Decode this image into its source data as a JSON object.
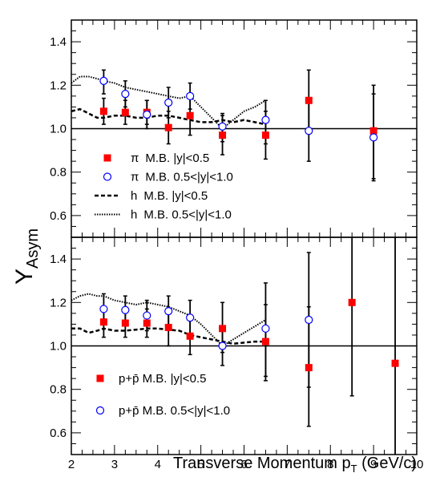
{
  "chart_data": [
    {
      "type": "scatter",
      "panel": "top",
      "ylabel": "Y",
      "ylabel_sub": "Asym",
      "xlim": [
        2,
        10
      ],
      "ylim": [
        0.5,
        1.5
      ],
      "yticks": [
        "0.6",
        "0.8",
        "1.0",
        "1.2",
        "1.4"
      ],
      "reference_line": 1.0,
      "legend": [
        {
          "symbol": "π",
          "text": "M.B. |y|<0.5",
          "marker": "filled-square",
          "color": "#ff0000"
        },
        {
          "symbol": "π",
          "text": "M.B. 0.5<|y|<1.0",
          "marker": "open-circle",
          "color": "#0000ff"
        },
        {
          "symbol": "h",
          "text": "M.B. |y|<0.5",
          "marker": "dashed-line",
          "color": "#000000"
        },
        {
          "symbol": "h",
          "text": "M.B. 0.5<|y|<1.0",
          "marker": "dotted-line",
          "color": "#000000"
        }
      ],
      "series": [
        {
          "name": "π M.B. |y|<0.5",
          "marker": "filled-square",
          "color": "#ff0000",
          "points": [
            {
              "x": 2.75,
              "y": 1.08,
              "lo": 1.02,
              "hi": 1.14
            },
            {
              "x": 3.25,
              "y": 1.075,
              "lo": 1.02,
              "hi": 1.13
            },
            {
              "x": 3.75,
              "y": 1.075,
              "lo": 1.02,
              "hi": 1.13
            },
            {
              "x": 4.25,
              "y": 1.005,
              "lo": 0.93,
              "hi": 1.08
            },
            {
              "x": 4.75,
              "y": 1.06,
              "lo": 0.97,
              "hi": 1.15
            },
            {
              "x": 5.5,
              "y": 0.97,
              "lo": 0.88,
              "hi": 1.06
            },
            {
              "x": 6.5,
              "y": 0.97,
              "lo": 0.86,
              "hi": 1.08
            },
            {
              "x": 7.5,
              "y": 1.13,
              "lo": 0.99,
              "hi": 1.27
            },
            {
              "x": 9.0,
              "y": 0.99,
              "lo": 0.77,
              "hi": 1.2
            }
          ]
        },
        {
          "name": "π M.B. 0.5<|y|<1.0",
          "marker": "open-circle",
          "color": "#0000ff",
          "points": [
            {
              "x": 2.75,
              "y": 1.22,
              "lo": 1.16,
              "hi": 1.27
            },
            {
              "x": 3.25,
              "y": 1.16,
              "lo": 1.1,
              "hi": 1.22
            },
            {
              "x": 3.75,
              "y": 1.065,
              "lo": 1.0,
              "hi": 1.13
            },
            {
              "x": 4.25,
              "y": 1.12,
              "lo": 1.05,
              "hi": 1.19
            },
            {
              "x": 4.75,
              "y": 1.15,
              "lo": 1.09,
              "hi": 1.21
            },
            {
              "x": 5.5,
              "y": 1.01,
              "lo": 0.94,
              "hi": 1.07
            },
            {
              "x": 6.5,
              "y": 1.04,
              "lo": 0.93,
              "hi": 1.13
            },
            {
              "x": 7.5,
              "y": 0.99,
              "lo": 0.85,
              "hi": 1.13
            },
            {
              "x": 9.0,
              "y": 0.96,
              "lo": 0.76,
              "hi": 1.16
            }
          ]
        },
        {
          "name": "h M.B. |y|<0.5",
          "line": "dashed",
          "color": "#000000",
          "x": [
            2.0,
            2.2,
            2.4,
            2.6,
            2.75,
            3.0,
            3.25,
            3.5,
            3.75,
            4.0,
            4.25,
            4.5,
            4.75,
            5.0,
            5.25,
            5.5,
            5.75,
            6.0,
            6.25,
            6.5
          ],
          "y": [
            1.08,
            1.09,
            1.07,
            1.05,
            1.05,
            1.06,
            1.06,
            1.05,
            1.05,
            1.06,
            1.06,
            1.05,
            1.04,
            1.03,
            1.03,
            1.04,
            1.03,
            1.04,
            1.03,
            1.02
          ]
        },
        {
          "name": "h M.B. 0.5<|y|<1.0",
          "line": "dotted",
          "color": "#000000",
          "x": [
            2.0,
            2.2,
            2.4,
            2.6,
            2.75,
            3.0,
            3.25,
            3.5,
            3.75,
            4.0,
            4.25,
            4.5,
            4.75,
            5.0,
            5.25,
            5.5,
            5.75,
            6.0,
            6.25,
            6.5
          ],
          "y": [
            1.21,
            1.24,
            1.24,
            1.23,
            1.22,
            1.21,
            1.19,
            1.18,
            1.17,
            1.16,
            1.15,
            1.14,
            1.15,
            1.1,
            1.05,
            1.0,
            1.04,
            1.08,
            1.1,
            1.13
          ]
        }
      ]
    },
    {
      "type": "scatter",
      "panel": "bottom",
      "xlabel": "Transverse Momentum p",
      "xlabel_sub": "T",
      "xlabel_unit": " (GeV/c)",
      "xlim": [
        2,
        10
      ],
      "ylim": [
        0.5,
        1.5
      ],
      "xticks": [
        "2",
        "3",
        "4",
        "5",
        "6",
        "7",
        "8",
        "9",
        "10"
      ],
      "yticks": [
        "0.6",
        "0.8",
        "1.0",
        "1.2",
        "1.4"
      ],
      "reference_line": 1.0,
      "legend": [
        {
          "text": "p+p̄  M.B. |y|<0.5",
          "marker": "filled-square",
          "color": "#ff0000"
        },
        {
          "text": "p+p̄  M.B. 0.5<|y|<1.0",
          "marker": "open-circle",
          "color": "#0000ff"
        }
      ],
      "series": [
        {
          "name": "p+p̄ M.B. |y|<0.5",
          "marker": "filled-square",
          "color": "#ff0000",
          "points": [
            {
              "x": 2.75,
              "y": 1.11,
              "lo": 1.04,
              "hi": 1.18
            },
            {
              "x": 3.25,
              "y": 1.105,
              "lo": 1.04,
              "hi": 1.17
            },
            {
              "x": 3.75,
              "y": 1.105,
              "lo": 1.04,
              "hi": 1.17
            },
            {
              "x": 4.25,
              "y": 1.085,
              "lo": 1.0,
              "hi": 1.17
            },
            {
              "x": 4.75,
              "y": 1.045,
              "lo": 0.96,
              "hi": 1.13
            },
            {
              "x": 5.5,
              "y": 1.08,
              "lo": 0.97,
              "hi": 1.2
            },
            {
              "x": 6.5,
              "y": 1.02,
              "lo": 0.84,
              "hi": 1.19
            },
            {
              "x": 7.5,
              "y": 0.9,
              "lo": 0.63,
              "hi": 1.18
            },
            {
              "x": 8.5,
              "y": 1.2,
              "lo": 0.77,
              "hi": 1.63
            },
            {
              "x": 9.5,
              "y": 0.92,
              "lo": 0.35,
              "hi": 1.5
            }
          ]
        },
        {
          "name": "p+p̄ M.B. 0.5<|y|<1.0",
          "marker": "open-circle",
          "color": "#0000ff",
          "points": [
            {
              "x": 2.75,
              "y": 1.17,
              "lo": 1.11,
              "hi": 1.24
            },
            {
              "x": 3.25,
              "y": 1.165,
              "lo": 1.1,
              "hi": 1.23
            },
            {
              "x": 3.75,
              "y": 1.14,
              "lo": 1.07,
              "hi": 1.21
            },
            {
              "x": 4.25,
              "y": 1.16,
              "lo": 1.09,
              "hi": 1.23
            },
            {
              "x": 4.75,
              "y": 1.13,
              "lo": 1.05,
              "hi": 1.21
            },
            {
              "x": 5.5,
              "y": 1.0,
              "lo": 0.91,
              "hi": 1.09
            },
            {
              "x": 6.5,
              "y": 1.08,
              "lo": 0.86,
              "hi": 1.29
            },
            {
              "x": 7.5,
              "y": 1.12,
              "lo": 0.81,
              "hi": 1.43
            }
          ]
        },
        {
          "name": "h M.B. |y|<0.5",
          "line": "dashed",
          "color": "#000000",
          "x": [
            2.0,
            2.2,
            2.4,
            2.6,
            2.75,
            3.0,
            3.25,
            3.5,
            3.75,
            4.0,
            4.25,
            4.5,
            4.75,
            5.0,
            5.25,
            5.5,
            5.75,
            6.0,
            6.25,
            6.5
          ],
          "y": [
            1.08,
            1.08,
            1.06,
            1.07,
            1.08,
            1.07,
            1.07,
            1.075,
            1.08,
            1.08,
            1.075,
            1.07,
            1.05,
            1.04,
            1.03,
            1.02,
            1.01,
            1.015,
            1.02,
            1.02
          ]
        },
        {
          "name": "h M.B. 0.5<|y|<1.0",
          "line": "dotted",
          "color": "#000000",
          "x": [
            2.0,
            2.2,
            2.4,
            2.6,
            2.75,
            3.0,
            3.25,
            3.5,
            3.75,
            4.0,
            4.25,
            4.5,
            4.75,
            5.0,
            5.25,
            5.5,
            5.75,
            6.0,
            6.25,
            6.5
          ],
          "y": [
            1.21,
            1.23,
            1.24,
            1.23,
            1.23,
            1.21,
            1.2,
            1.19,
            1.2,
            1.19,
            1.18,
            1.16,
            1.14,
            1.1,
            1.05,
            1.0,
            1.03,
            1.06,
            1.09,
            1.12
          ]
        }
      ]
    }
  ]
}
